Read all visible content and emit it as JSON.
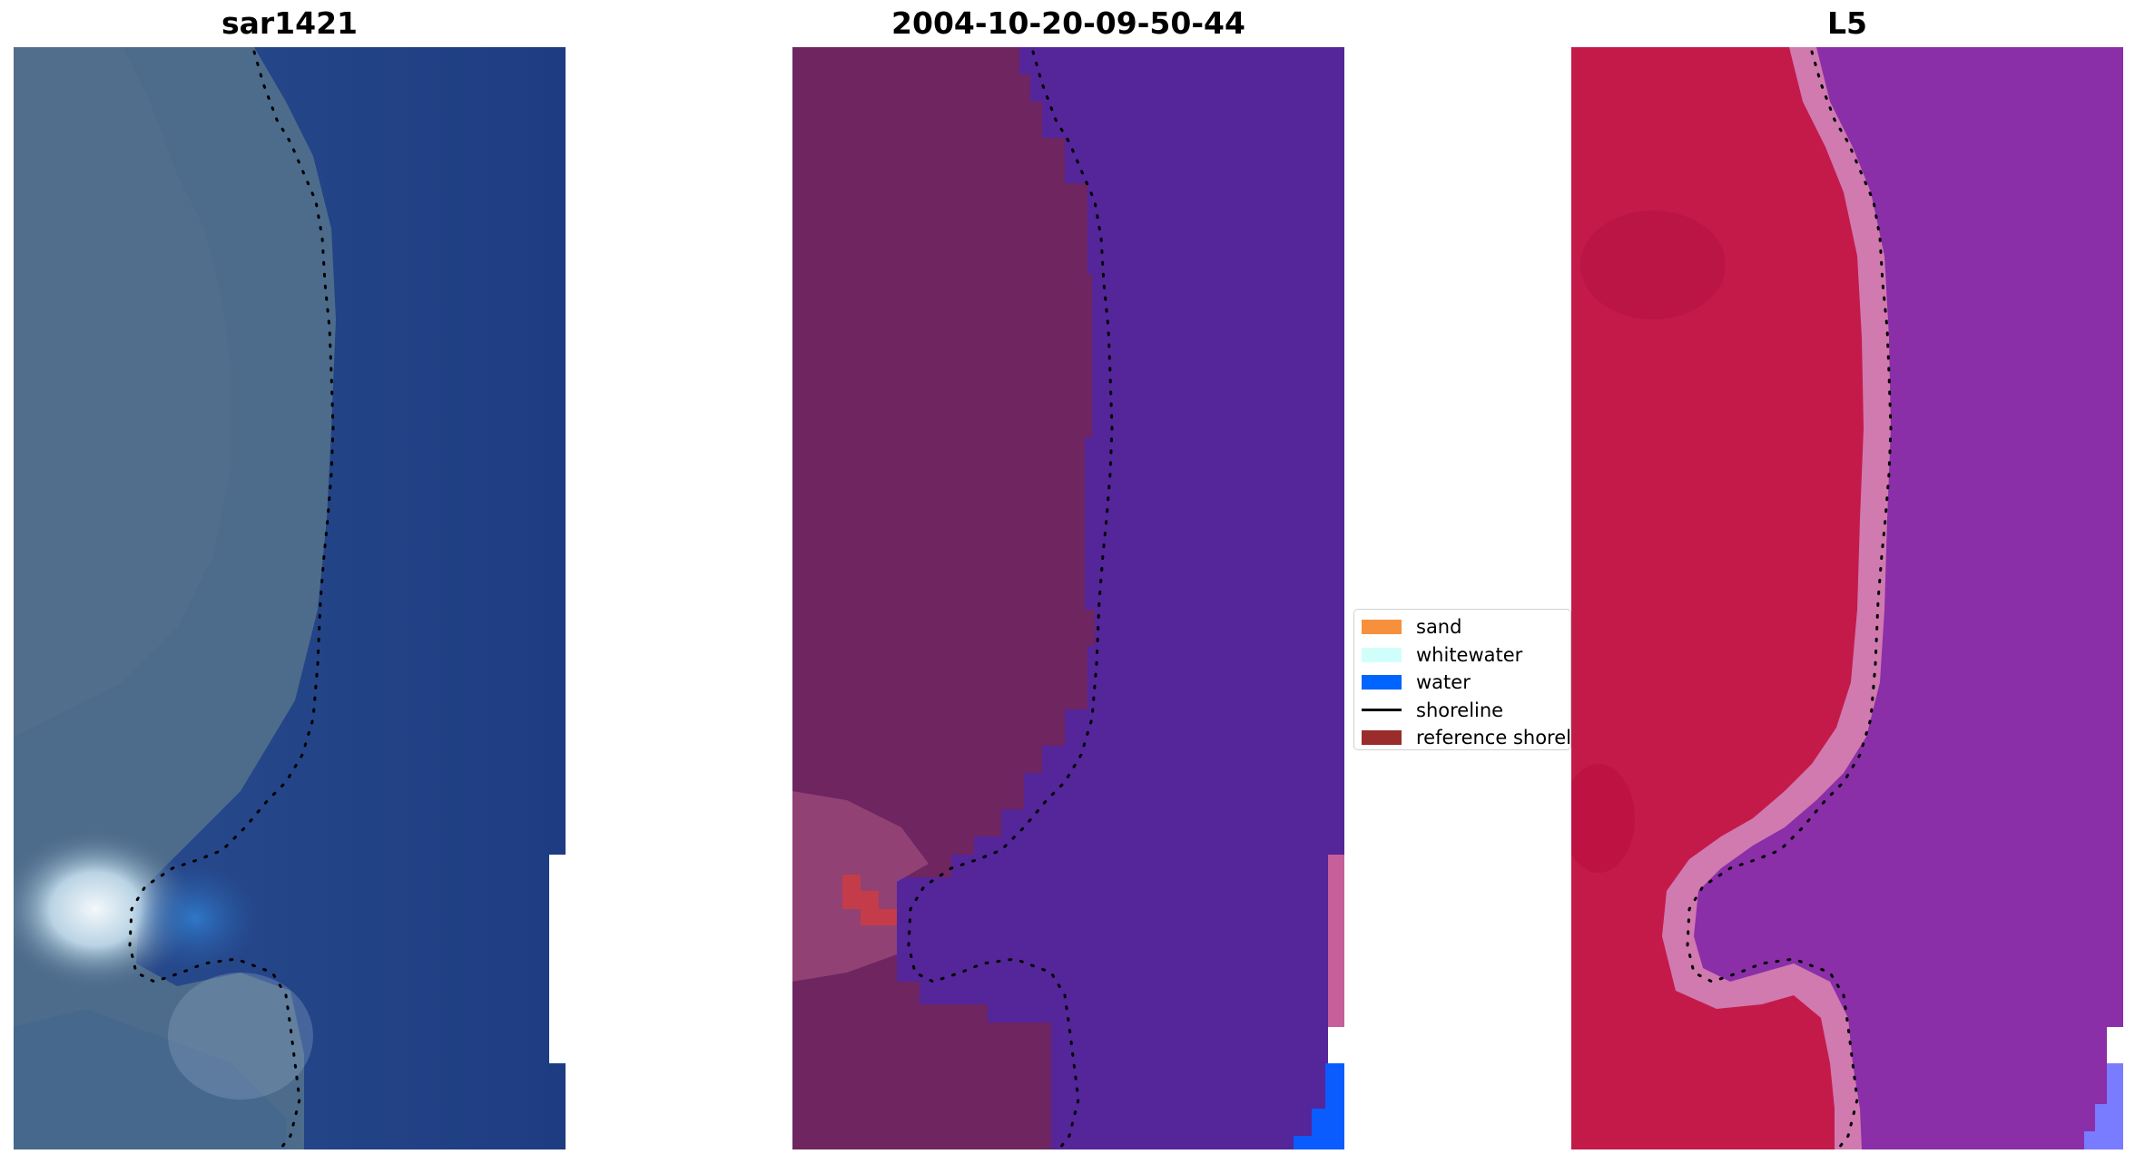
{
  "panels": [
    {
      "title": "sar1421"
    },
    {
      "title": "2004-10-20-09-50-44"
    },
    {
      "title": "L5"
    }
  ],
  "legend": {
    "items": [
      {
        "label": "sand",
        "color": "#f6903d",
        "kind": "swatch"
      },
      {
        "label": "whitewater",
        "color": "#d0fffb",
        "kind": "swatch"
      },
      {
        "label": "water",
        "color": "#0064ff",
        "kind": "swatch"
      },
      {
        "label": "shoreline",
        "color": "#000000",
        "kind": "line"
      },
      {
        "label": "reference shoreline",
        "color": "#9a2c2c",
        "kind": "swatch"
      }
    ]
  },
  "colors": {
    "sar_land": "#4b6a8a",
    "sar_water": "#1f3f86",
    "sar_surf": "#eaf2f6",
    "class_land": "#6e2560",
    "class_water": "#55259a",
    "class_pink": "#c65f9a",
    "class_red": "#c43c4a",
    "class_blue": "#0a5cff",
    "ndwi_land": "#c41a4a",
    "ndwi_water": "#8a2fa8",
    "ndwi_edge": "#d07ab0",
    "ndwi_blue": "#7a7cff",
    "shoreline_dots": "#000000"
  }
}
